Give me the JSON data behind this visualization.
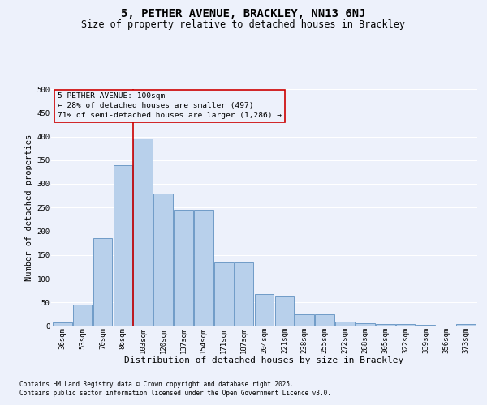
{
  "title1": "5, PETHER AVENUE, BRACKLEY, NN13 6NJ",
  "title2": "Size of property relative to detached houses in Brackley",
  "xlabel": "Distribution of detached houses by size in Brackley",
  "ylabel": "Number of detached properties",
  "categories": [
    "36sqm",
    "53sqm",
    "70sqm",
    "86sqm",
    "103sqm",
    "120sqm",
    "137sqm",
    "154sqm",
    "171sqm",
    "187sqm",
    "204sqm",
    "221sqm",
    "238sqm",
    "255sqm",
    "272sqm",
    "288sqm",
    "305sqm",
    "322sqm",
    "339sqm",
    "356sqm",
    "373sqm"
  ],
  "values": [
    8,
    45,
    185,
    340,
    395,
    280,
    245,
    245,
    135,
    135,
    68,
    63,
    25,
    25,
    10,
    6,
    4,
    4,
    2,
    1,
    4
  ],
  "bar_color": "#b8d0eb",
  "bar_edge_color": "#6090c0",
  "vline_color": "#cc0000",
  "vline_index": 3.5,
  "annotation_text": "5 PETHER AVENUE: 100sqm\n← 28% of detached houses are smaller (497)\n71% of semi-detached houses are larger (1,286) →",
  "annotation_box_edgecolor": "#cc0000",
  "footnote1": "Contains HM Land Registry data © Crown copyright and database right 2025.",
  "footnote2": "Contains public sector information licensed under the Open Government Licence v3.0.",
  "ylim": [
    0,
    500
  ],
  "yticks": [
    0,
    50,
    100,
    150,
    200,
    250,
    300,
    350,
    400,
    450,
    500
  ],
  "bg_color": "#edf1fb",
  "grid_color": "#ffffff",
  "title1_fontsize": 10,
  "title2_fontsize": 8.5,
  "xlabel_fontsize": 8,
  "ylabel_fontsize": 7.5,
  "tick_fontsize": 6.5,
  "annot_fontsize": 6.8,
  "footnote_fontsize": 5.5
}
